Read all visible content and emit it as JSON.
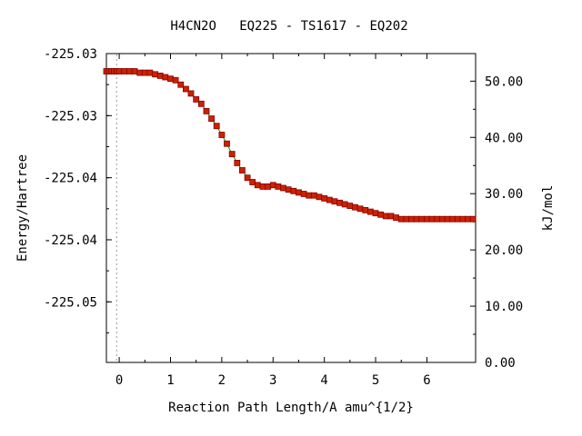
{
  "chart_data": {
    "type": "scatter",
    "title": "H4CN2O   EQ225 - TS1617 - EQ202",
    "xlabel": "Reaction Path Length/A amu^{1/2}",
    "ylabel": "Energy/Hartree",
    "y2label": "kJ/mol",
    "xlim": [
      -0.25,
      6.95
    ],
    "ylim": [
      -225.0512,
      -225.0303
    ],
    "y2lim": [
      0.0,
      54.9
    ],
    "x_ticks": [
      0,
      1,
      2,
      3,
      4,
      5,
      6
    ],
    "x_tick_labels": [
      "0",
      "1",
      "2",
      "3",
      "4",
      "5",
      "6"
    ],
    "y_ticks": [
      -225.0303,
      -225.0345,
      -225.0387,
      -225.0429,
      -225.0471
    ],
    "y_tick_labels": [
      "-225.03",
      "-225.03",
      "-225.04",
      "-225.04",
      "-225.05"
    ],
    "y2_ticks": [
      0,
      10,
      20,
      30,
      40,
      50
    ],
    "y2_tick_labels": [
      "0.00",
      "10.00",
      "20.00",
      "30.00",
      "40.00",
      "50.00"
    ],
    "ts_marker_x": -0.05,
    "line_color": "#00aa00",
    "marker_color": "#cc2200",
    "marker_edge_color": "#880000",
    "series": [
      {
        "x": [
          -0.25,
          -0.2,
          -0.15,
          -0.1,
          -0.05,
          0.0,
          0.1,
          0.2,
          0.3,
          0.4,
          0.5,
          0.6,
          0.7,
          0.8,
          0.9,
          1.0,
          1.1,
          1.2,
          1.3,
          1.4,
          1.5,
          1.6,
          1.7,
          1.8,
          1.9,
          2.0,
          2.1,
          2.2,
          2.3,
          2.4,
          2.5,
          2.6,
          2.7,
          2.8,
          2.9,
          3.0,
          3.1,
          3.2,
          3.3,
          3.4,
          3.5,
          3.6,
          3.7,
          3.8,
          3.9,
          4.0,
          4.1,
          4.2,
          4.3,
          4.4,
          4.5,
          4.6,
          4.7,
          4.8,
          4.9,
          5.0,
          5.1,
          5.2,
          5.3,
          5.4,
          5.5,
          5.6,
          5.7,
          5.8,
          5.9,
          6.0,
          6.1,
          6.2,
          6.3,
          6.4,
          6.5,
          6.6,
          6.7,
          6.8,
          6.9
        ],
        "y": [
          -225.0315,
          -225.0315,
          -225.0315,
          -225.0315,
          -225.0315,
          -225.0315,
          -225.0315,
          -225.0315,
          -225.0315,
          -225.0316,
          -225.0316,
          -225.0316,
          -225.0317,
          -225.0318,
          -225.0319,
          -225.032,
          -225.0321,
          -225.0324,
          -225.0327,
          -225.033,
          -225.0334,
          -225.0337,
          -225.0342,
          -225.0347,
          -225.0352,
          -225.0358,
          -225.0364,
          -225.0371,
          -225.0377,
          -225.0382,
          -225.0387,
          -225.039,
          -225.0392,
          -225.0393,
          -225.0393,
          -225.0392,
          -225.0393,
          -225.0394,
          -225.0395,
          -225.0396,
          -225.0397,
          -225.0398,
          -225.0399,
          -225.0399,
          -225.04,
          -225.0401,
          -225.0402,
          -225.0403,
          -225.0404,
          -225.0405,
          -225.0406,
          -225.0407,
          -225.0408,
          -225.0409,
          -225.041,
          -225.0411,
          -225.0412,
          -225.0413,
          -225.0413,
          -225.0414,
          -225.0415,
          -225.0415,
          -225.0415,
          -225.0415,
          -225.0415,
          -225.0415,
          -225.0415,
          -225.0415,
          -225.0415,
          -225.0415,
          -225.0415,
          -225.0415,
          -225.0415,
          -225.0415,
          -225.0415
        ]
      }
    ]
  }
}
